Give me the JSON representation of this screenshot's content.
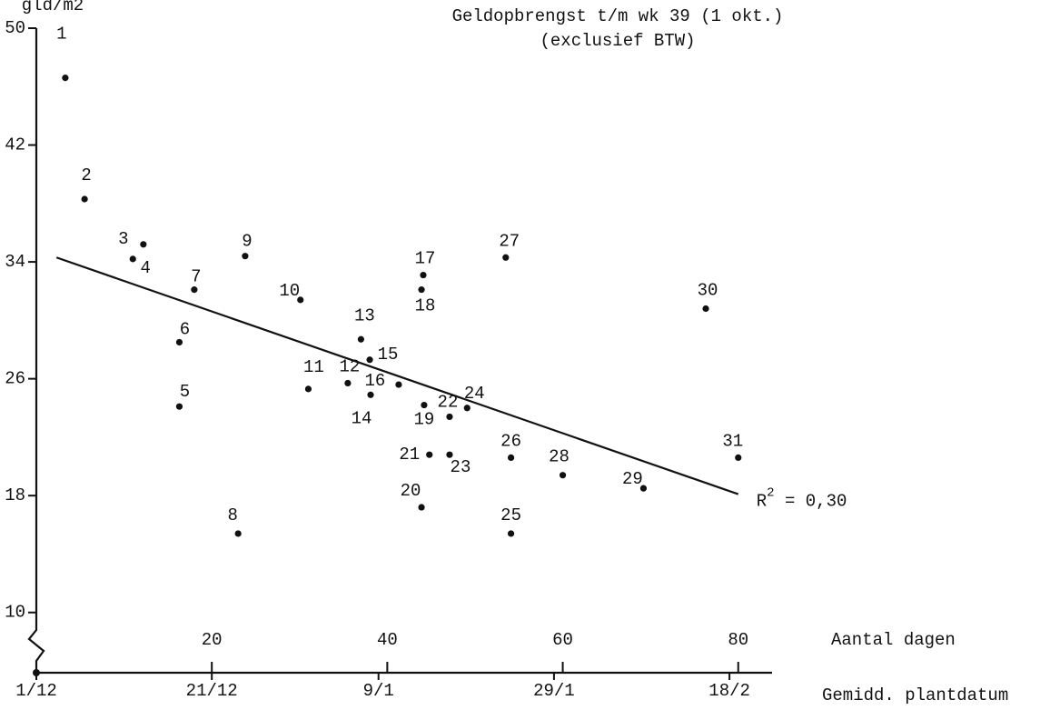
{
  "chart_data": {
    "type": "scatter",
    "title": "Geldopbrengst t/m wk 39 (1 okt.)",
    "subtitle": "(exclusief BTW)",
    "y_label": "gld/m2",
    "x_label": "Aantal dagen",
    "x2_label": "Gemidd. plantdatum",
    "xlim": [
      0,
      84
    ],
    "ylim": [
      6,
      50
    ],
    "xticks": [
      20,
      40,
      60,
      80
    ],
    "x2ticks": [
      {
        "value": 0,
        "label": "1/12"
      },
      {
        "value": 20,
        "label": "21/12"
      },
      {
        "value": 39,
        "label": "9/1"
      },
      {
        "value": 59,
        "label": "29/1"
      },
      {
        "value": 79,
        "label": "18/2"
      }
    ],
    "yticks": [
      10,
      18,
      26,
      34,
      42,
      50
    ],
    "series": [
      {
        "color": "#111111",
        "point_labels": [
          "1",
          "2",
          "3",
          "4",
          "5",
          "6",
          "7",
          "8",
          "9",
          "10",
          "11",
          "12",
          "13",
          "14",
          "15",
          "16",
          "17",
          "18",
          "19",
          "20",
          "21",
          "22",
          "23",
          "24",
          "25",
          "26",
          "27",
          "28",
          "29",
          "30",
          "31"
        ],
        "x": [
          3.3,
          5.5,
          12.2,
          11.0,
          16.3,
          16.3,
          18.0,
          23.0,
          23.8,
          30.1,
          31.0,
          35.5,
          37.0,
          38.1,
          38.0,
          41.3,
          44.1,
          43.9,
          44.2,
          43.9,
          44.8,
          47.1,
          47.1,
          49.1,
          54.1,
          54.1,
          53.5,
          60.0,
          69.2,
          76.3,
          80.0
        ],
        "y": [
          46.6,
          38.3,
          35.2,
          34.2,
          24.1,
          28.5,
          32.1,
          15.4,
          34.4,
          31.4,
          25.3,
          25.7,
          28.7,
          24.9,
          27.3,
          25.6,
          33.1,
          32.1,
          24.2,
          17.2,
          20.8,
          23.4,
          20.8,
          24.0,
          15.4,
          20.6,
          34.3,
          19.4,
          18.5,
          30.8,
          20.6
        ]
      }
    ],
    "trend_line": {
      "color": "#111111",
      "x": [
        2.3,
        80.0
      ],
      "y": [
        34.3,
        18.1
      ]
    },
    "r2_label": {
      "base": "R",
      "sup": "2",
      "rest": " = 0,30"
    }
  }
}
